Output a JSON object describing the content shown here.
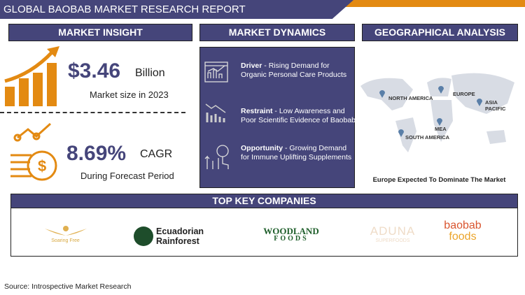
{
  "title": "GLOBAL BAOBAB MARKET RESEARCH REPORT",
  "sections": {
    "insight": "MARKET INSIGHT",
    "dynamics": "MARKET DYNAMICS",
    "geo": "GEOGRAPHICAL ANALYSIS",
    "companies": "TOP KEY COMPANIES"
  },
  "insight": {
    "market_value": "$3.46",
    "market_unit": "Billion",
    "market_caption": "Market size in 2023",
    "cagr": "8.69%",
    "cagr_label": "CAGR",
    "cagr_caption": "During Forecast Period"
  },
  "dynamics": [
    {
      "label": "Driver",
      "text": " - Rising Demand for Organic Personal Care Products",
      "icon": "chart-dashboard-icon"
    },
    {
      "label": "Restraint",
      "text": " - Low Awareness and Poor Scientific Evidence of Baobab",
      "icon": "declining-chart-icon"
    },
    {
      "label": "Opportunity",
      "text": " - Growing Demand for Immune Uplifting Supplements",
      "icon": "growth-hand-icon"
    }
  ],
  "geo": {
    "regions": [
      "NORTH AMERICA",
      "EUROPE",
      "ASIA PACIFIC",
      "MEA",
      "SOUTH AMERICA"
    ],
    "caption": "Europe Expected To Dominate The Market"
  },
  "companies": [
    {
      "name": "Soaring Free"
    },
    {
      "name": "Ecuadorian",
      "name2": "Rainforest"
    },
    {
      "name": "WOODLAND",
      "name2": "FOODS"
    },
    {
      "name": "ADUNA",
      "name2": "SUPERFOODS"
    },
    {
      "name": "baobab",
      "name2": "foods"
    }
  ],
  "source": "Source: Introspective Market Research",
  "colors": {
    "navy": "#45457a",
    "orange": "#e38a12"
  }
}
